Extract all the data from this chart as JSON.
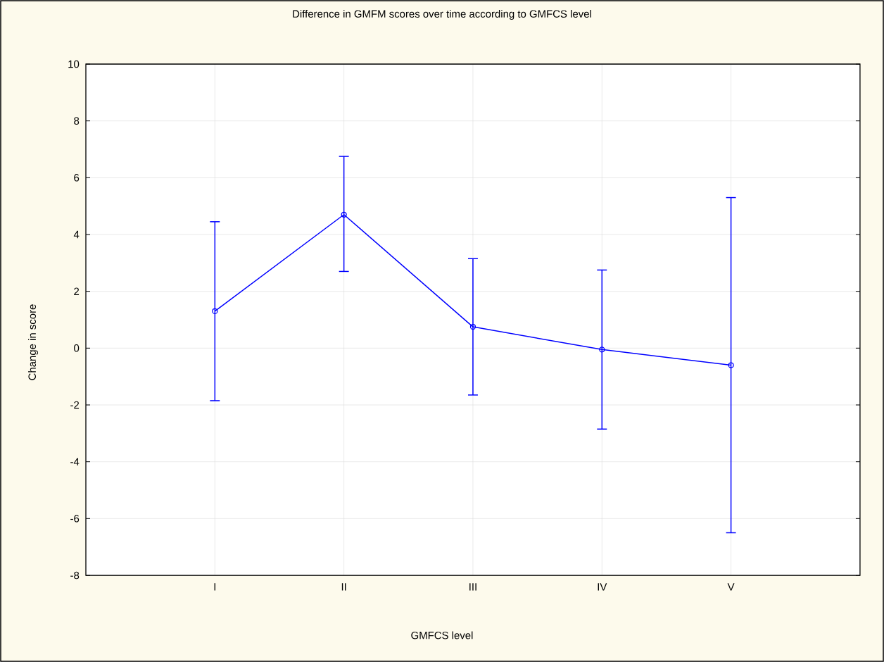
{
  "chart_data": {
    "type": "line",
    "title": "Difference in GMFM scores over time according to GMFCS level",
    "xlabel": "GMFCS level",
    "ylabel": "Change in score",
    "categories": [
      "I",
      "II",
      "III",
      "IV",
      "V"
    ],
    "series": [
      {
        "color": "#0000ff",
        "values": [
          1.3,
          4.7,
          0.75,
          -0.05,
          -0.6
        ],
        "errors": [
          [
            -1.85,
            4.45
          ],
          [
            2.7,
            6.75
          ],
          [
            -1.65,
            3.15
          ],
          [
            -2.85,
            2.75
          ],
          [
            -6.5,
            5.3
          ]
        ]
      }
    ],
    "ylim": [
      -8,
      10
    ],
    "yticks": [
      -8,
      -6,
      -4,
      -2,
      0,
      2,
      4,
      6,
      8,
      10
    ],
    "grid": true,
    "marker": "circle",
    "line_style": "solid"
  }
}
